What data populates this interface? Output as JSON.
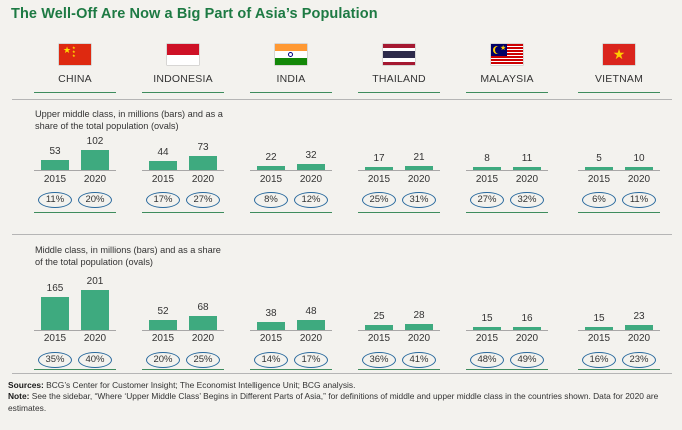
{
  "title": "The Well-Off Are Now a Big Part of Asia’s Population",
  "countries": [
    {
      "name": "CHINA",
      "flag": "china-flag-icon"
    },
    {
      "name": "INDONESIA",
      "flag": "indonesia-flag-icon"
    },
    {
      "name": "INDIA",
      "flag": "india-flag-icon"
    },
    {
      "name": "THAILAND",
      "flag": "thailand-flag-icon"
    },
    {
      "name": "MALAYSIA",
      "flag": "malaysia-flag-icon"
    },
    {
      "name": "VIETNAM",
      "flag": "vietnam-flag-icon"
    }
  ],
  "colors": {
    "title": "#1d7a43",
    "bar": "#3eaa7f",
    "oval": "#2a6a9e",
    "background": "#f3f2ee"
  },
  "chart_data": [
    {
      "type": "bar",
      "label": "Upper middle class, in millions (bars) and as a share of the total population (ovals)",
      "categories": [
        "CHINA",
        "INDONESIA",
        "INDIA",
        "THAILAND",
        "MALAYSIA",
        "VIETNAM"
      ],
      "years": [
        "2015",
        "2020"
      ],
      "series": [
        {
          "name": "2015",
          "values": [
            53,
            44,
            22,
            17,
            8,
            5
          ],
          "shares": [
            "11%",
            "17%",
            "8%",
            "25%",
            "27%",
            "6%"
          ]
        },
        {
          "name": "2020",
          "values": [
            102,
            73,
            32,
            21,
            11,
            10
          ],
          "shares": [
            "20%",
            "27%",
            "12%",
            "31%",
            "32%",
            "11%"
          ]
        }
      ]
    },
    {
      "type": "bar",
      "label": "Middle class, in millions (bars) and as a share of the total population (ovals)",
      "categories": [
        "CHINA",
        "INDONESIA",
        "INDIA",
        "THAILAND",
        "MALAYSIA",
        "VIETNAM"
      ],
      "years": [
        "2015",
        "2020"
      ],
      "series": [
        {
          "name": "2015",
          "values": [
            165,
            52,
            38,
            25,
            15,
            15
          ],
          "shares": [
            "35%",
            "20%",
            "14%",
            "36%",
            "48%",
            "16%"
          ]
        },
        {
          "name": "2020",
          "values": [
            201,
            68,
            48,
            28,
            16,
            23
          ],
          "shares": [
            "40%",
            "25%",
            "17%",
            "41%",
            "49%",
            "23%"
          ]
        }
      ]
    }
  ],
  "notes": {
    "sources_label": "Sources:",
    "sources_text": " BCG’s Center for Customer Insight; The Economist Intelligence Unit; BCG analysis.",
    "note_label": "Note:",
    "note_text": " See the sidebar, “Where ‘Upper Middle Class’ Begins in Different Parts of Asia,” for definitions of middle and upper middle class in the countries shown. Data for 2020 are estimates."
  }
}
